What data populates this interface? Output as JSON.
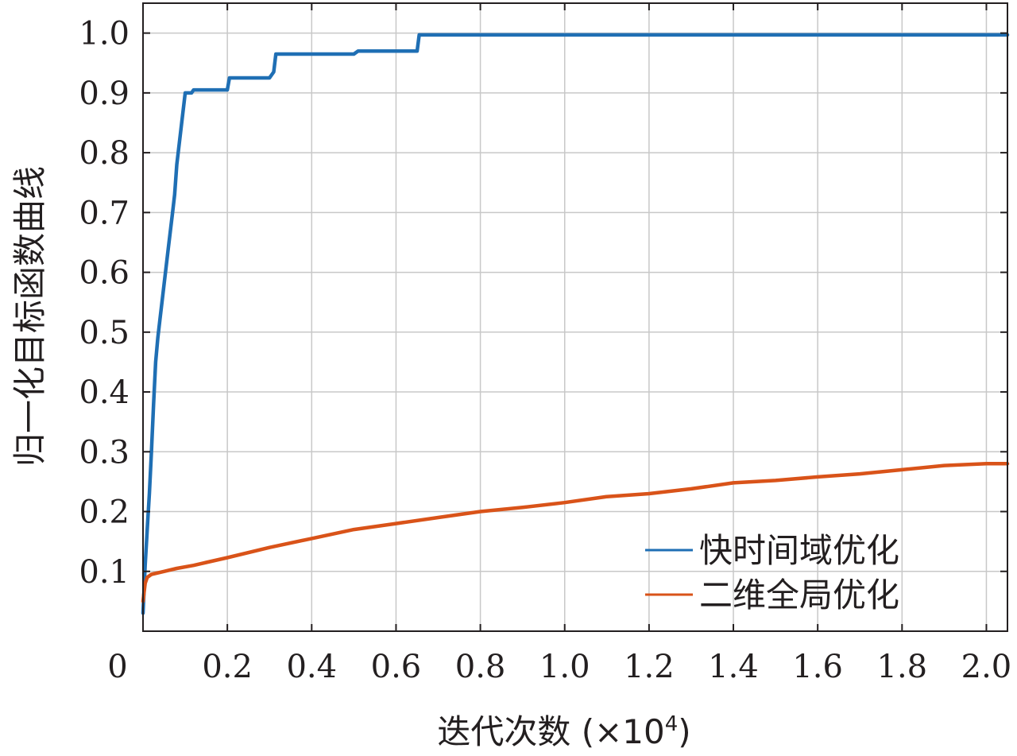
{
  "chart_data": {
    "type": "line",
    "xlabel": "迭代次数 (×10",
    "xlabel_exponent": "4",
    "ylabel": "归一化目标函数曲线",
    "xlim": [
      0,
      2.05
    ],
    "ylim": [
      0,
      1.05
    ],
    "grid": true,
    "legend_position": "bottom-right",
    "x_ticks": [
      0,
      0.2,
      0.4,
      0.6,
      0.8,
      1.0,
      1.2,
      1.4,
      1.6,
      1.8,
      2.0
    ],
    "x_tick_labels": [
      "0",
      "0.2",
      "0.4",
      "0.6",
      "0.8",
      "1.0",
      "1.2",
      "1.4",
      "1.6",
      "1.8",
      "2.0"
    ],
    "y_ticks": [
      0.1,
      0.2,
      0.3,
      0.4,
      0.5,
      0.6,
      0.7,
      0.8,
      0.9,
      1.0
    ],
    "y_tick_labels": [
      "0.1",
      "0.2",
      "0.3",
      "0.4",
      "0.5",
      "0.6",
      "0.7",
      "0.8",
      "0.9",
      "1.0"
    ],
    "series": [
      {
        "name": "快时间域优化",
        "color": "#1f6fb4",
        "x": [
          0.0,
          0.005,
          0.01,
          0.015,
          0.02,
          0.025,
          0.03,
          0.035,
          0.04,
          0.05,
          0.06,
          0.07,
          0.075,
          0.08,
          0.09,
          0.1,
          0.11,
          0.115,
          0.12,
          0.13,
          0.135,
          0.2,
          0.205,
          0.3,
          0.31,
          0.315,
          0.5,
          0.51,
          0.65,
          0.655,
          2.05
        ],
        "y": [
          0.03,
          0.11,
          0.17,
          0.23,
          0.3,
          0.38,
          0.45,
          0.49,
          0.52,
          0.58,
          0.64,
          0.7,
          0.73,
          0.78,
          0.84,
          0.9,
          0.9,
          0.9,
          0.905,
          0.905,
          0.905,
          0.905,
          0.925,
          0.925,
          0.935,
          0.965,
          0.965,
          0.97,
          0.97,
          0.997,
          0.997
        ]
      },
      {
        "name": "二维全局优化",
        "color": "#d95319",
        "x": [
          0.0,
          0.005,
          0.01,
          0.02,
          0.05,
          0.08,
          0.12,
          0.15,
          0.2,
          0.3,
          0.4,
          0.5,
          0.6,
          0.7,
          0.8,
          0.9,
          1.0,
          1.1,
          1.2,
          1.3,
          1.4,
          1.5,
          1.6,
          1.7,
          1.8,
          1.9,
          2.0,
          2.05
        ],
        "y": [
          0.05,
          0.08,
          0.09,
          0.095,
          0.1,
          0.105,
          0.11,
          0.115,
          0.123,
          0.14,
          0.155,
          0.17,
          0.18,
          0.19,
          0.2,
          0.207,
          0.215,
          0.225,
          0.23,
          0.238,
          0.248,
          0.252,
          0.258,
          0.263,
          0.27,
          0.277,
          0.28,
          0.28
        ]
      }
    ]
  }
}
